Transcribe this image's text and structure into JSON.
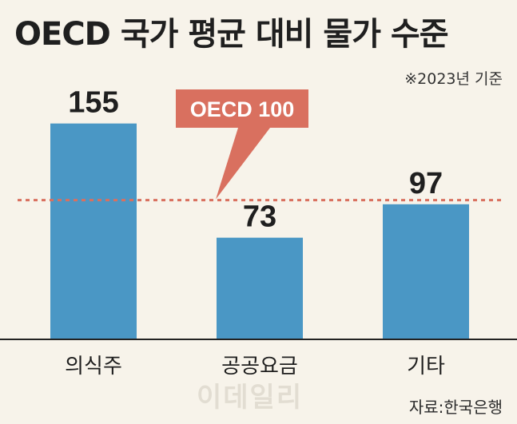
{
  "chart_data": {
    "type": "bar",
    "title": "OECD 국가 평균 대비 물가 수준",
    "note": "※2023년 기준",
    "source": "자료:한국은행",
    "categories": [
      "의식주",
      "공공요금",
      "기타"
    ],
    "values": [
      155,
      73,
      97
    ],
    "reference_line": {
      "label": "OECD 100",
      "value": 100
    },
    "ylim": [
      0,
      172
    ],
    "grid": false,
    "colors": {
      "bar": "#4a97c5",
      "reference": "#d9705f",
      "callout": "#d9705f",
      "baseline": "#222222"
    }
  },
  "watermark": "이데일리"
}
